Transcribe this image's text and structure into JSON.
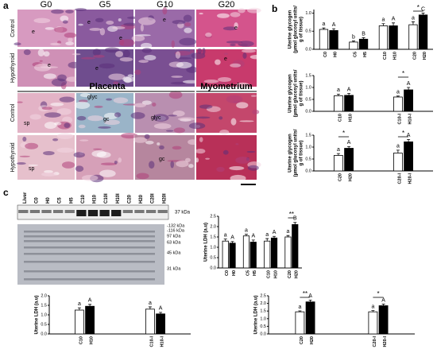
{
  "panel_a": {
    "label": "a",
    "columns": [
      "G0",
      "G5",
      "G10",
      "G20"
    ],
    "rows": [
      "Control",
      "Hypothyroid"
    ],
    "sections": [
      "Placenta",
      "Myometrium"
    ],
    "lower_rows": [
      "Control",
      "Hypothyroid"
    ],
    "tissue_labels": [
      "e",
      "e",
      "e",
      "e",
      "e",
      "e",
      "e",
      "e",
      "sp",
      "glyc",
      "gc",
      "glyc",
      "sp",
      "gc"
    ]
  },
  "panel_b": {
    "label": "b"
  },
  "panel_c": {
    "label": "c",
    "lanes": [
      "Liver",
      "C0",
      "H0",
      "C5",
      "H5",
      "C10",
      "H10",
      "C10I",
      "H10I",
      "C20",
      "H20",
      "C20I",
      "H20I"
    ],
    "band_label": "37 kDa",
    "ladder": [
      "-132 kDa",
      "-116 kDa",
      "97 kDa",
      "63 kDa",
      "45 kDa",
      "31 kDa"
    ]
  },
  "chart_data": [
    {
      "type": "bar",
      "ylabel": [
        "Uterine glycogen",
        "(µmol glucosyl units/",
        "g of tissue)"
      ],
      "categories": [
        "C0",
        "H0",
        "C5",
        "H5",
        "C10",
        "H10",
        "C20",
        "H20"
      ],
      "values": [
        0.55,
        0.52,
        0.2,
        0.28,
        0.65,
        0.65,
        0.68,
        0.95
      ],
      "errors": [
        0.04,
        0.05,
        0.03,
        0.04,
        0.06,
        0.08,
        0.08,
        0.05
      ],
      "colors": [
        "#ffffff",
        "#000000",
        "#ffffff",
        "#000000",
        "#ffffff",
        "#000000",
        "#ffffff",
        "#000000"
      ],
      "letters": [
        "a",
        "A",
        "b",
        "B",
        "a",
        "A",
        "a",
        "C"
      ],
      "significance": [
        "*"
      ],
      "ylim": [
        0,
        1.1
      ],
      "yticks": [
        {
          "value": 0,
          "label": "0.0"
        },
        0.5,
        {
          "value": 1,
          "label": "1.0"
        }
      ]
    },
    {
      "type": "bar",
      "ylabel": [
        "Uterine glycogen",
        "(µmol glucosyl units/",
        "g of tissue)"
      ],
      "categories": [
        "C10",
        "H10",
        "C10-I",
        "H10-I"
      ],
      "values": [
        0.65,
        0.67,
        0.6,
        0.9
      ],
      "errors": [
        0.07,
        0.08,
        0.04,
        0.1
      ],
      "colors": [
        "#ffffff",
        "#000000",
        "#ffffff",
        "#000000"
      ],
      "letters": [
        "a",
        "A",
        "a",
        "A"
      ],
      "significance": [
        "*"
      ],
      "ylim": [
        0,
        1.5
      ],
      "yticks": [
        {
          "value": 0,
          "label": "0.0"
        },
        0.5,
        {
          "value": 1,
          "label": "1.0"
        },
        1.5
      ]
    },
    {
      "type": "bar",
      "ylabel": [
        "Uterine glycogen",
        "(µmol glucosyl units/",
        "g of tissue)"
      ],
      "categories": [
        "C20",
        "H20",
        "C20-I",
        "H20-I"
      ],
      "values": [
        0.65,
        0.95,
        0.75,
        1.22
      ],
      "errors": [
        0.08,
        0.07,
        0.12,
        0.1
      ],
      "colors": [
        "#ffffff",
        "#000000",
        "#ffffff",
        "#000000"
      ],
      "letters": [
        "a",
        "A",
        "a",
        "A"
      ],
      "significance": [
        "*",
        "*"
      ],
      "ylim": [
        0,
        1.5
      ],
      "yticks": [
        {
          "value": 0,
          "label": "0.0"
        },
        0.5,
        {
          "value": 1,
          "label": "1.0"
        },
        1.5
      ]
    },
    {
      "type": "bar",
      "ylabel": [
        "Uterine LDH (a.u)"
      ],
      "categories": [
        "C0",
        "H0",
        "C5",
        "H5",
        "C10",
        "H10",
        "C20",
        "H20"
      ],
      "values": [
        1.3,
        1.2,
        1.55,
        1.25,
        1.3,
        1.45,
        1.5,
        2.1
      ],
      "errors": [
        0.1,
        0.08,
        0.08,
        0.1,
        0.12,
        0.08,
        0.07,
        0.1
      ],
      "colors": [
        "#ffffff",
        "#000000",
        "#ffffff",
        "#000000",
        "#ffffff",
        "#000000",
        "#ffffff",
        "#000000"
      ],
      "letters": [
        "a",
        "A",
        "a",
        "A",
        "a",
        "A",
        "a",
        "B"
      ],
      "significance": [
        "**"
      ],
      "ylim": [
        0,
        2.5
      ],
      "yticks": [
        {
          "value": 0,
          "label": "0.0"
        },
        0.5,
        {
          "value": 1,
          "label": "1.0"
        },
        1.5,
        {
          "value": 2,
          "label": "2.0"
        },
        2.5
      ]
    },
    {
      "type": "bar",
      "ylabel": [
        "Uterine LDH (a.u)"
      ],
      "categories": [
        "C10",
        "H10",
        "C10-I",
        "H10-I"
      ],
      "values": [
        1.25,
        1.45,
        1.3,
        1.05
      ],
      "errors": [
        0.12,
        0.1,
        0.12,
        0.08
      ],
      "colors": [
        "#ffffff",
        "#000000",
        "#ffffff",
        "#000000"
      ],
      "letters": [
        "a",
        "A",
        "a",
        "A"
      ],
      "ylim": [
        0,
        2
      ],
      "yticks": [
        {
          "value": 0,
          "label": "0.0"
        },
        0.5,
        {
          "value": 1,
          "label": "1.0"
        },
        1.5,
        {
          "value": 2,
          "label": "2.0"
        }
      ]
    },
    {
      "type": "bar",
      "ylabel": [
        "Uterine LDH (a.u)"
      ],
      "categories": [
        "C20",
        "H20",
        "C20-I",
        "H20-I"
      ],
      "values": [
        1.45,
        2.1,
        1.45,
        1.85
      ],
      "errors": [
        0.06,
        0.12,
        0.08,
        0.1
      ],
      "colors": [
        "#ffffff",
        "#000000",
        "#ffffff",
        "#000000"
      ],
      "letters": [
        "a",
        "A",
        "a",
        "A"
      ],
      "significance": [
        "**",
        "*"
      ],
      "ylim": [
        0,
        2.5
      ],
      "yticks": [
        {
          "value": 0,
          "label": "0.0"
        },
        0.5,
        {
          "value": 1,
          "label": "1.0"
        },
        1.5,
        {
          "value": 2,
          "label": "2.0"
        },
        2.5
      ]
    }
  ]
}
